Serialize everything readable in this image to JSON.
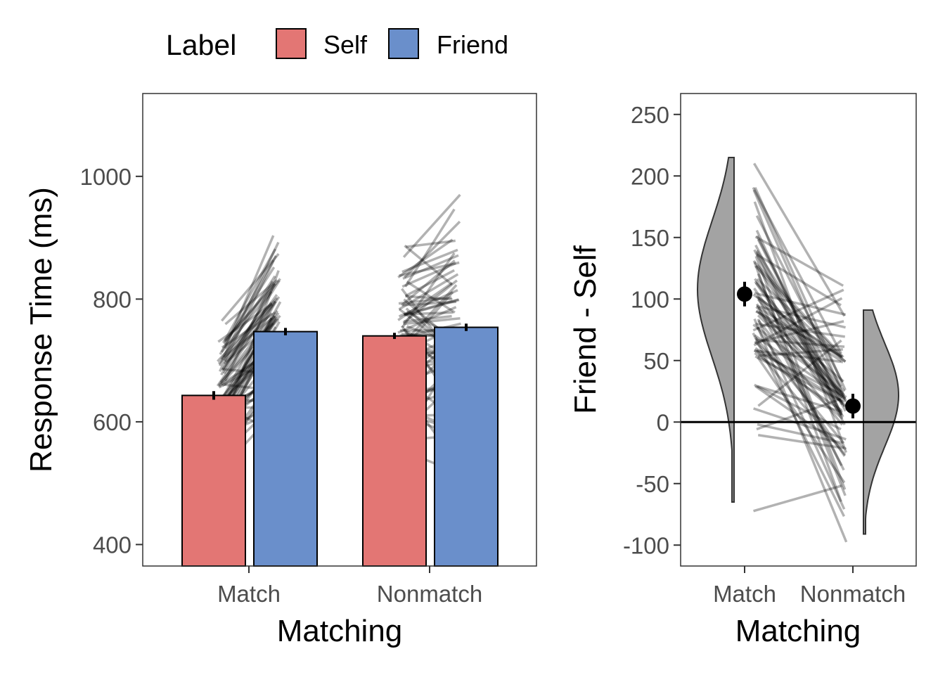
{
  "legend": {
    "title": "Label",
    "items": [
      {
        "label": "Self",
        "color": "#E37674"
      },
      {
        "label": "Friend",
        "color": "#6A8FCB"
      }
    ]
  },
  "chart_data": [
    {
      "type": "bar",
      "title": "",
      "xlabel": "Matching",
      "ylabel": "Response Time (ms)",
      "categories": [
        "Match",
        "Nonmatch"
      ],
      "ylim": [
        365,
        1135
      ],
      "yticks": [
        400,
        600,
        800,
        1000
      ],
      "series": [
        {
          "name": "Self",
          "values": [
            643,
            740
          ],
          "errors": [
            7,
            5
          ]
        },
        {
          "name": "Friend",
          "values": [
            747,
            754
          ],
          "errors": [
            6,
            6
          ]
        }
      ],
      "paired_lines_description": "individual participants: Self vs Friend response times (gray lines)"
    },
    {
      "type": "raincloud",
      "title": "",
      "xlabel": "Matching",
      "ylabel": "Friend - Self",
      "categories": [
        "Match",
        "Nonmatch"
      ],
      "ylim": [
        -117,
        267
      ],
      "yticks": [
        -100,
        -50,
        0,
        50,
        100,
        150,
        200,
        250
      ],
      "reference_line": 0,
      "means": [
        104,
        13
      ],
      "errors": [
        10,
        10
      ],
      "density_range": [
        [
          -65,
          215
        ],
        [
          -91,
          91
        ]
      ]
    }
  ]
}
